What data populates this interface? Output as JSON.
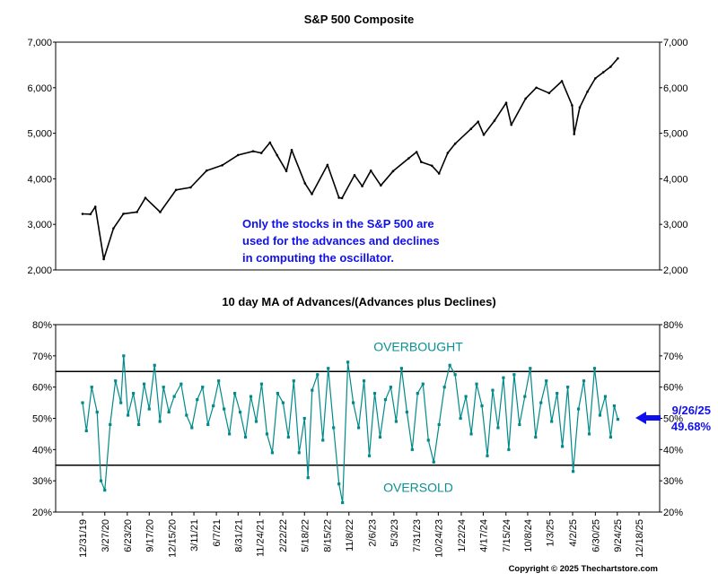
{
  "chart_data": [
    {
      "type": "line",
      "title": "S&P 500 Composite",
      "xlabel": "",
      "ylabel": "",
      "x_range": [
        "12/31/19",
        "12/18/25"
      ],
      "ylim": [
        2000,
        7000
      ],
      "y_ticks": [
        "2,000",
        "3,000",
        "4,000",
        "5,000",
        "6,000",
        "7,000"
      ],
      "grid": false,
      "annotation": [
        "Only the stocks in the S&P 500 are",
        "used for the advances and declines",
        "in computing the oscillator."
      ],
      "series": [
        {
          "name": "S&P 500",
          "x": [
            "12/31/19",
            "1/31/20",
            "2/19/20",
            "3/23/20",
            "4/30/20",
            "6/8/20",
            "7/31/20",
            "9/2/20",
            "10/30/20",
            "12/31/20",
            "2/26/21",
            "4/30/21",
            "6/30/21",
            "8/31/21",
            "10/29/21",
            "11/30/21",
            "1/3/22",
            "1/31/22",
            "3/8/22",
            "3/29/22",
            "5/20/22",
            "6/16/22",
            "8/16/22",
            "9/30/22",
            "10/12/22",
            "11/30/22",
            "12/30/22",
            "2/2/23",
            "3/13/23",
            "4/30/23",
            "6/30/23",
            "7/31/23",
            "8/18/23",
            "9/29/23",
            "10/27/23",
            "11/30/23",
            "12/29/23",
            "2/29/24",
            "3/28/24",
            "4/19/24",
            "5/31/24",
            "7/16/24",
            "8/5/24",
            "9/30/24",
            "11/11/24",
            "12/31/24",
            "2/19/25",
            "3/31/25",
            "4/8/25",
            "4/30/25",
            "5/30/25",
            "6/30/25",
            "7/31/25",
            "8/29/25",
            "9/26/25"
          ],
          "y": [
            3230,
            3225,
            3386,
            2237,
            2912,
            3232,
            3271,
            3580,
            3270,
            3756,
            3811,
            4181,
            4297,
            4522,
            4605,
            4567,
            4796,
            4516,
            4170,
            4631,
            3901,
            3666,
            4305,
            3585,
            3577,
            4080,
            3839,
            4179,
            3855,
            4169,
            4450,
            4588,
            4370,
            4288,
            4117,
            4568,
            4770,
            5096,
            5254,
            4967,
            5277,
            5667,
            5186,
            5762,
            6001,
            5882,
            6144,
            5612,
            4982,
            5569,
            5912,
            6205,
            6339,
            6460,
            6644
          ]
        }
      ]
    },
    {
      "type": "line",
      "title": "10 day MA of Advances/(Advances plus Declines)",
      "xlabel": "",
      "ylabel": "",
      "ylim": [
        20,
        80
      ],
      "y_ticks": [
        "20%",
        "30%",
        "40%",
        "50%",
        "60%",
        "70%",
        "80%"
      ],
      "x_ticks": [
        "12/31/19",
        "3/27/20",
        "6/23/20",
        "9/17/20",
        "12/15/20",
        "3/11/21",
        "6/7/21",
        "8/31/21",
        "11/24/21",
        "2/22/22",
        "5/18/22",
        "8/15/22",
        "11/8/22",
        "2/6/23",
        "5/3/23",
        "7/31/23",
        "10/24/23",
        "1/22/24",
        "4/17/24",
        "7/15/24",
        "10/8/24",
        "1/3/25",
        "4/2/25",
        "6/30/25",
        "9/24/25",
        "12/18/25"
      ],
      "reference_lines": [
        {
          "label": "OVERBOUGHT",
          "value": 65
        },
        {
          "label": "OVERSOLD",
          "value": 35
        }
      ],
      "last_point": {
        "date": "9/26/25",
        "value": "49.68%"
      },
      "series": [
        {
          "name": "10 day MA of Advances/(Advances plus Declines)",
          "x": [
            "12/31/19",
            "1/15/20",
            "2/5/20",
            "2/26/20",
            "3/12/20",
            "3/27/20",
            "4/17/20",
            "5/8/20",
            "5/29/20",
            "6/9/20",
            "6/26/20",
            "7/17/20",
            "8/7/20",
            "8/28/20",
            "9/17/20",
            "10/8/20",
            "10/29/20",
            "11/12/20",
            "12/3/20",
            "12/24/20",
            "1/20/21",
            "2/10/21",
            "3/3/21",
            "3/24/21",
            "4/14/21",
            "5/5/21",
            "5/26/21",
            "6/16/21",
            "7/7/21",
            "7/28/21",
            "8/18/21",
            "9/8/21",
            "9/29/21",
            "10/20/21",
            "11/10/21",
            "12/1/21",
            "12/22/21",
            "1/12/22",
            "2/2/22",
            "2/23/22",
            "3/16/22",
            "4/6/22",
            "4/27/22",
            "5/18/22",
            "6/1/22",
            "6/17/22",
            "7/8/22",
            "7/29/22",
            "8/19/22",
            "9/9/22",
            "9/30/22",
            "10/14/22",
            "11/4/22",
            "11/25/22",
            "12/16/22",
            "1/6/23",
            "1/27/23",
            "2/17/23",
            "3/10/23",
            "3/31/23",
            "4/21/23",
            "5/12/23",
            "6/2/23",
            "6/23/23",
            "7/14/23",
            "8/4/23",
            "8/25/23",
            "9/15/23",
            "10/6/23",
            "10/27/23",
            "11/17/23",
            "12/8/23",
            "12/29/23",
            "1/19/24",
            "2/9/24",
            "3/1/24",
            "3/22/24",
            "4/12/24",
            "5/3/24",
            "5/24/24",
            "6/14/24",
            "7/5/24",
            "7/26/24",
            "8/16/24",
            "9/6/24",
            "9/27/24",
            "10/18/24",
            "11/8/24",
            "11/29/24",
            "12/20/24",
            "1/10/25",
            "1/31/25",
            "2/21/25",
            "3/14/25",
            "4/4/25",
            "4/25/25",
            "5/16/25",
            "6/6/25",
            "6/27/25",
            "7/18/25",
            "8/8/25",
            "8/29/25",
            "9/12/25",
            "9/26/25"
          ],
          "y": [
            55,
            46,
            60,
            52,
            30,
            27,
            48,
            62,
            55,
            70,
            51,
            58,
            48,
            61,
            53,
            67,
            49,
            60,
            52,
            57,
            61,
            51,
            47,
            56,
            60,
            48,
            54,
            62,
            53,
            45,
            58,
            52,
            44,
            57,
            49,
            61,
            45,
            39,
            58,
            55,
            44,
            62,
            39,
            50,
            31,
            59,
            64,
            43,
            66,
            47,
            29,
            23,
            68,
            55,
            47,
            62,
            38,
            58,
            44,
            56,
            60,
            49,
            66,
            52,
            40,
            58,
            61,
            43,
            36,
            48,
            60,
            67,
            64,
            50,
            57,
            45,
            61,
            54,
            38,
            59,
            47,
            63,
            40,
            64,
            48,
            57,
            66,
            44,
            55,
            62,
            49,
            58,
            41,
            60,
            33,
            53,
            62,
            45,
            66,
            51,
            57,
            44,
            54,
            49.68
          ]
        }
      ]
    }
  ],
  "copyright": "Copyright © 2025 Thechartstore.com"
}
